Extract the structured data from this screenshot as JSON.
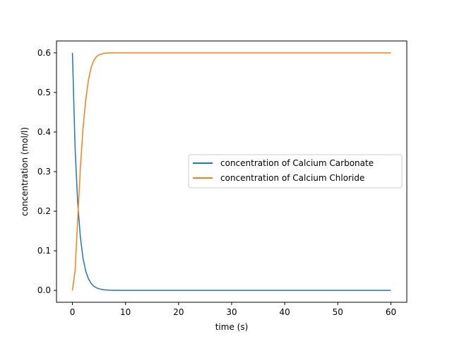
{
  "chart_data": {
    "type": "line",
    "title": "",
    "xlabel": "time (s)",
    "ylabel": "concentration (mol/l)",
    "xlim": [
      -3,
      63
    ],
    "ylim": [
      -0.03,
      0.63
    ],
    "xticks": [
      0,
      10,
      20,
      30,
      40,
      50,
      60
    ],
    "xtick_labels": [
      "0",
      "10",
      "20",
      "30",
      "40",
      "50",
      "60"
    ],
    "yticks": [
      0.0,
      0.1,
      0.2,
      0.3,
      0.4,
      0.5,
      0.6
    ],
    "ytick_labels": [
      "0.0",
      "0.1",
      "0.2",
      "0.3",
      "0.4",
      "0.5",
      "0.6"
    ],
    "grid": false,
    "legend_position": "center-right",
    "x": [
      0,
      0.5,
      1,
      1.5,
      2,
      2.5,
      3,
      3.5,
      4,
      4.5,
      5,
      6,
      7,
      8,
      9,
      10,
      12,
      15,
      20,
      30,
      40,
      50,
      60
    ],
    "series": [
      {
        "name": "concentration of Calcium Carbonate",
        "color": "#1f77b4",
        "values": [
          0.6,
          0.36,
          0.22,
          0.134,
          0.081,
          0.049,
          0.03,
          0.018,
          0.011,
          0.0067,
          0.004,
          0.0015,
          0.0006,
          0.0002,
          0.0001,
          0.0,
          0.0,
          0.0,
          0.0,
          0.0,
          0.0,
          0.0,
          0.0
        ]
      },
      {
        "name": "concentration of Calcium Chloride",
        "color": "#ff7f0e",
        "values": [
          0.0,
          0.05,
          0.18,
          0.31,
          0.41,
          0.48,
          0.53,
          0.562,
          0.58,
          0.59,
          0.595,
          0.599,
          0.6,
          0.6,
          0.6,
          0.6,
          0.6,
          0.6,
          0.6,
          0.6,
          0.6,
          0.6,
          0.6
        ]
      }
    ]
  }
}
